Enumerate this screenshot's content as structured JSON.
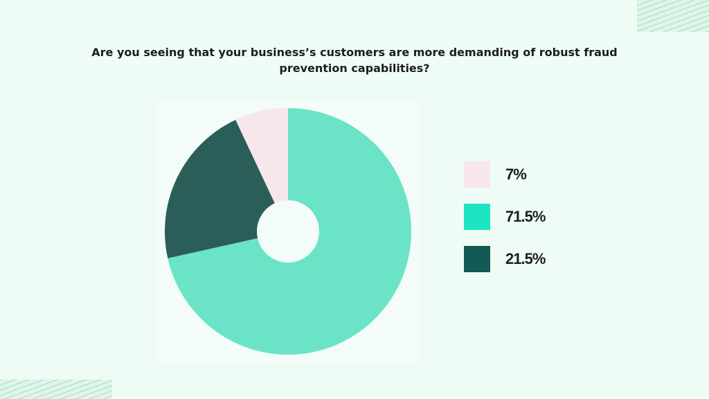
{
  "chart_data": {
    "type": "pie",
    "donut": true,
    "title": "Are you seeing that your business’s customers are more demanding of robust fraud prevention capabilities?",
    "slices": [
      {
        "label": "7%",
        "value": 7,
        "color": "#f7e7ea",
        "legend_color": "#f7e7ea"
      },
      {
        "label": "71.5%",
        "value": 71.5,
        "color": "#6be3c7",
        "legend_color": "#1de4c3"
      },
      {
        "label": "21.5%",
        "value": 21.5,
        "color": "#2b5e58",
        "legend_color": "#135a54"
      }
    ],
    "legend_position": "right",
    "background": "#effcf6",
    "panel_background": "#f3fcf8"
  }
}
